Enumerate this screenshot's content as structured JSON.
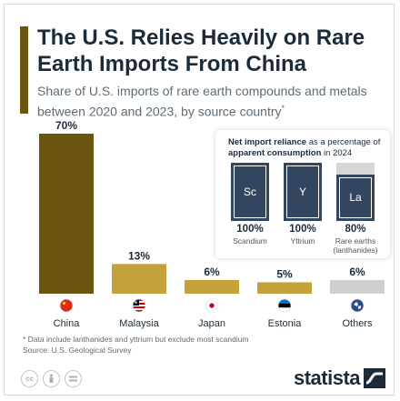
{
  "header": {
    "title": "The U.S. Relies Heavily on Rare Earth Imports From China",
    "subtitle": "Share of U.S. imports of rare earth compounds and metals between 2020 and 2023, by source country",
    "subtitle_mark": "*"
  },
  "chart_data": {
    "type": "bar",
    "title": "The U.S. Relies Heavily on Rare Earth Imports From China",
    "categories": [
      "China",
      "Malaysia",
      "Japan",
      "Estonia",
      "Others"
    ],
    "values": [
      70,
      13,
      6,
      5,
      6
    ],
    "value_labels": [
      "70%",
      "13%",
      "6%",
      "5%",
      "6%"
    ],
    "unit": "%",
    "ylim": [
      0,
      70
    ],
    "colors": [
      "#6b5512",
      "#c5a13c",
      "#c5a13c",
      "#c5a13c",
      "#cfcfcf"
    ],
    "flag_icons": [
      "china-flag-icon",
      "malaysia-flag-icon",
      "japan-flag-icon",
      "estonia-flag-icon",
      "globe-icon"
    ],
    "grid": false,
    "legend": "none"
  },
  "inset": {
    "title_bold_1": "Net import reliance",
    "title_rest": " as a percentage of ",
    "title_bold_2": "apparent consumption",
    "title_tail": " in 2024",
    "tiles": [
      {
        "symbol": "Sc",
        "value": 100,
        "pct": "100%",
        "name": "Scandium"
      },
      {
        "symbol": "Y",
        "value": 100,
        "pct": "100%",
        "name": "Yttrium"
      },
      {
        "symbol": "La",
        "value": 80,
        "pct": "80%",
        "name": "Rare earths (lanthanides)"
      }
    ],
    "fill_color": "#34465f",
    "track_color": "#d7d7d7"
  },
  "footer": {
    "note": "* Data include lanthanides and yttrium but exclude most scandium",
    "source": "Source: U.S. Geological Survey",
    "license_icons": [
      "creative-commons-icon",
      "attribution-icon",
      "no-derivatives-icon"
    ],
    "brand": "statista"
  }
}
